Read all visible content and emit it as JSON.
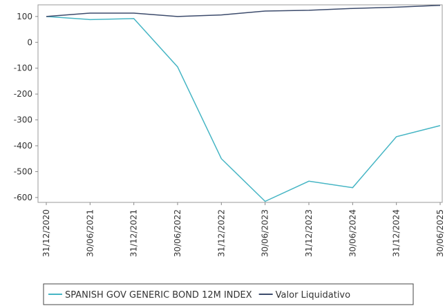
{
  "chart_data": {
    "type": "line",
    "categories": [
      "31/12/2020",
      "30/06/2021",
      "31/12/2021",
      "30/06/2022",
      "31/12/2022",
      "30/06/2023",
      "31/12/2023",
      "30/06/2024",
      "31/12/2024",
      "30/06/2025"
    ],
    "series": [
      {
        "name": "SPANISH GOV GENERIC BOND 12M INDEX",
        "color": "#45b5c4",
        "values": [
          100,
          88,
          92,
          -95,
          -450,
          -615,
          -537,
          -562,
          -365,
          -322
        ]
      },
      {
        "name": "Valor Liquidativo",
        "color": "#3b4a6b",
        "values": [
          100,
          113,
          113,
          100,
          106,
          121,
          124,
          131,
          136,
          143
        ]
      }
    ],
    "ylim": [
      -619,
      145
    ],
    "yticks": [
      100,
      0,
      -100,
      -200,
      -300,
      -400,
      -500,
      -600
    ],
    "grid": false
  }
}
